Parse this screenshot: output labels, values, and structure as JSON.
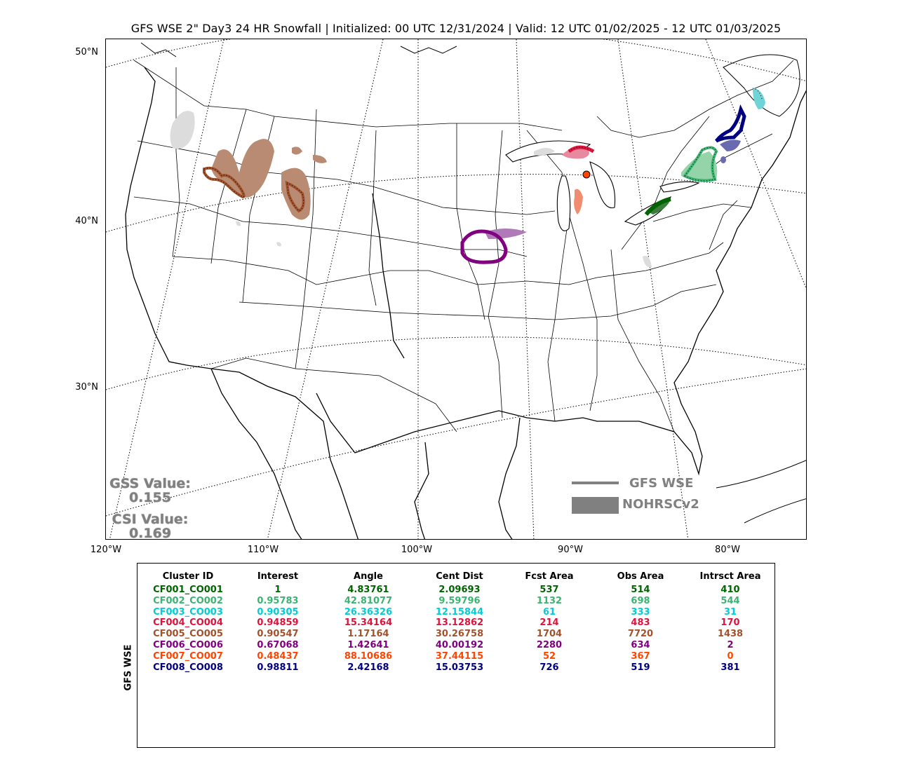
{
  "title": "GFS WSE 2\" Day3 24 HR Snowfall | Initialized: 00 UTC 12/31/2024 | Valid: 12 UTC 01/02/2025 - 12 UTC 01/03/2025",
  "map": {
    "lat_labels": [
      "50°N",
      "40°N",
      "30°N"
    ],
    "lon_labels": [
      "120°W",
      "110°W",
      "100°W",
      "90°W",
      "80°W"
    ],
    "gss_label": "GSS Value:",
    "gss_value": "0.155",
    "csi_label": "CSI Value:",
    "csi_value": "0.169",
    "legend": {
      "line_label": "GFS WSE",
      "fill_label": "NOHRSCv2",
      "line_color": "#808080",
      "fill_color": "#808080"
    },
    "background_snow_color": "#dcdcdc"
  },
  "table": {
    "side_label": "GFS WSE",
    "headers": [
      "Cluster ID",
      "Interest",
      "Angle",
      "Cent Dist",
      "Fcst Area",
      "Obs Area",
      "Intrsct Area"
    ],
    "rows": [
      {
        "color": "#006400",
        "cells": [
          "CF001_CO001",
          "1",
          "4.83761",
          "2.09693",
          "537",
          "514",
          "410"
        ]
      },
      {
        "color": "#3cb371",
        "cells": [
          "CF002_CO002",
          "0.95783",
          "42.81077",
          "9.59796",
          "1132",
          "698",
          "544"
        ]
      },
      {
        "color": "#00ced1",
        "cells": [
          "CF003_CO003",
          "0.90305",
          "26.36326",
          "12.15844",
          "61",
          "333",
          "31"
        ]
      },
      {
        "color": "#dc143c",
        "cells": [
          "CF004_CO004",
          "0.94859",
          "15.34164",
          "13.12862",
          "214",
          "483",
          "170"
        ]
      },
      {
        "color": "#a0522d",
        "cells": [
          "CF005_CO005",
          "0.90547",
          "1.17164",
          "30.26758",
          "1704",
          "7720",
          "1438"
        ]
      },
      {
        "color": "#800080",
        "cells": [
          "CF006_CO006",
          "0.67068",
          "1.42641",
          "40.00192",
          "2280",
          "634",
          "2"
        ]
      },
      {
        "color": "#ff4500",
        "cells": [
          "CF007_CO007",
          "0.48437",
          "88.10686",
          "37.44115",
          "52",
          "367",
          "0"
        ]
      },
      {
        "color": "#000080",
        "cells": [
          "CF008_CO008",
          "0.98811",
          "2.42168",
          "15.03753",
          "726",
          "519",
          "381"
        ]
      }
    ]
  }
}
